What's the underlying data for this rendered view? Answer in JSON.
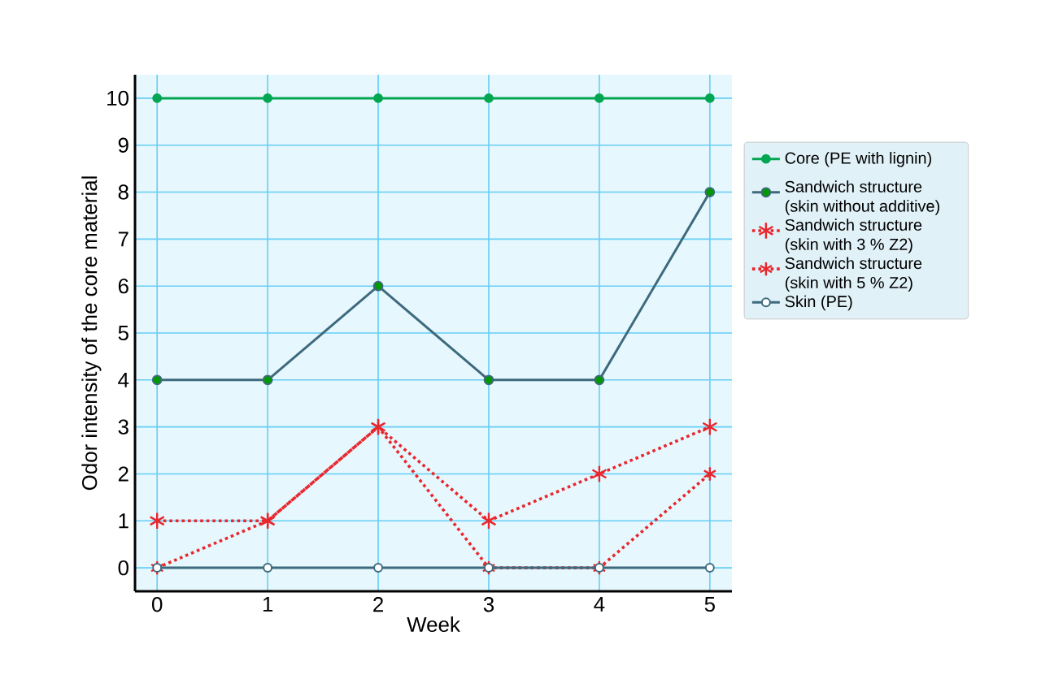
{
  "chart_data": {
    "type": "line",
    "xlabel": "Week",
    "ylabel": "Odor intensity of the core material",
    "x": [
      0,
      1,
      2,
      3,
      4,
      5
    ],
    "xlim": [
      -0.2,
      5.2
    ],
    "ylim": [
      -0.5,
      10.5
    ],
    "xticks": [
      0,
      1,
      2,
      3,
      4,
      5
    ],
    "yticks": [
      0,
      1,
      2,
      3,
      4,
      5,
      6,
      7,
      8,
      9,
      10
    ],
    "grid": true,
    "legend": "right",
    "series": [
      {
        "name": "Core (PE with lignin)",
        "color": "#00a651",
        "values": [
          10,
          10,
          10,
          10,
          10,
          10
        ],
        "marker": "circle",
        "line_style": "solid"
      },
      {
        "name": "Sandwich structure (skin without additive)",
        "color": "#3d6a7d",
        "values": [
          4,
          4,
          6,
          4,
          4,
          8
        ],
        "marker": "circle",
        "line_style": "solid"
      },
      {
        "name": "Sandwich structure (skin with 3 % Z2)",
        "color": "#e8262d",
        "values": [
          1,
          1,
          3,
          1,
          2,
          3
        ],
        "marker": "cross",
        "line_style": "dotted"
      },
      {
        "name": "Sandwich structure (skin with 5 % Z2)",
        "color": "#e8262d",
        "values": [
          0,
          1,
          3,
          0,
          0,
          2
        ],
        "marker": "cross",
        "line_style": "dotted"
      },
      {
        "name": "Skin (PE)",
        "color": "#3d6a7d",
        "values": [
          0,
          0,
          0,
          0,
          0,
          0
        ],
        "marker": "circle",
        "line_style": "solid"
      }
    ]
  }
}
